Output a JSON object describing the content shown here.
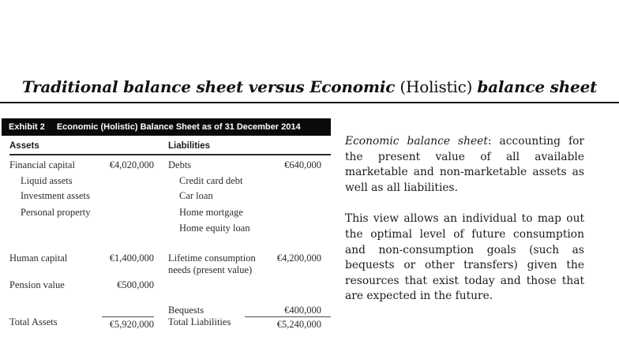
{
  "slide": {
    "title": {
      "part1": "Traditional balance sheet versus Economic",
      "part2": " (Holistic) ",
      "part3": "balance sheet"
    }
  },
  "exhibit": {
    "label": "Exhibit 2",
    "heading": "Economic (Holistic) Balance Sheet as of 31 December 2014",
    "col_assets": "Assets",
    "col_liabilities": "Liabilities",
    "rows": [
      {
        "asset": "Financial capital",
        "asset_value": "€4,020,000",
        "liability": "Debts",
        "liability_value": "€640,000"
      },
      {
        "asset": "Liquid assets",
        "liability": "Credit card debt"
      },
      {
        "asset": "Investment assets",
        "liability": "Car loan"
      },
      {
        "asset": "Personal property",
        "liability": "Home mortgage"
      },
      {
        "liability": "Home equity loan"
      },
      {
        "asset": "Human capital",
        "asset_value": "€1,400,000",
        "liability_line1": "Lifetime consumption",
        "liability_line2": "needs (present value)",
        "liability_value": "€4,200,000"
      },
      {
        "asset": "Pension value",
        "asset_value": "€500,000"
      },
      {
        "liability": "Bequests",
        "liability_value": "€400,000"
      }
    ],
    "totals": {
      "asset": "Total Assets",
      "asset_value": "€5,920,000",
      "liability": "Total Liabilities",
      "liability_value": "€5,240,000"
    }
  },
  "notes": {
    "p1_italic": "Economic balance sheet",
    "p1_rest": ": accounting for the present value of all available marketable and non-marketable assets as well as all liabilities.",
    "p2": "This view allows an individual to map out the optimal level of future consumption and non-consumption goals (such as bequests or other transfers) given the resources that exist today and those that are expected in the future."
  },
  "colors": {
    "bar_background": "#0a0a0a",
    "bar_text": "#ffffff",
    "body_text": "#2b2b2b",
    "rule": "#1c1c1c"
  }
}
